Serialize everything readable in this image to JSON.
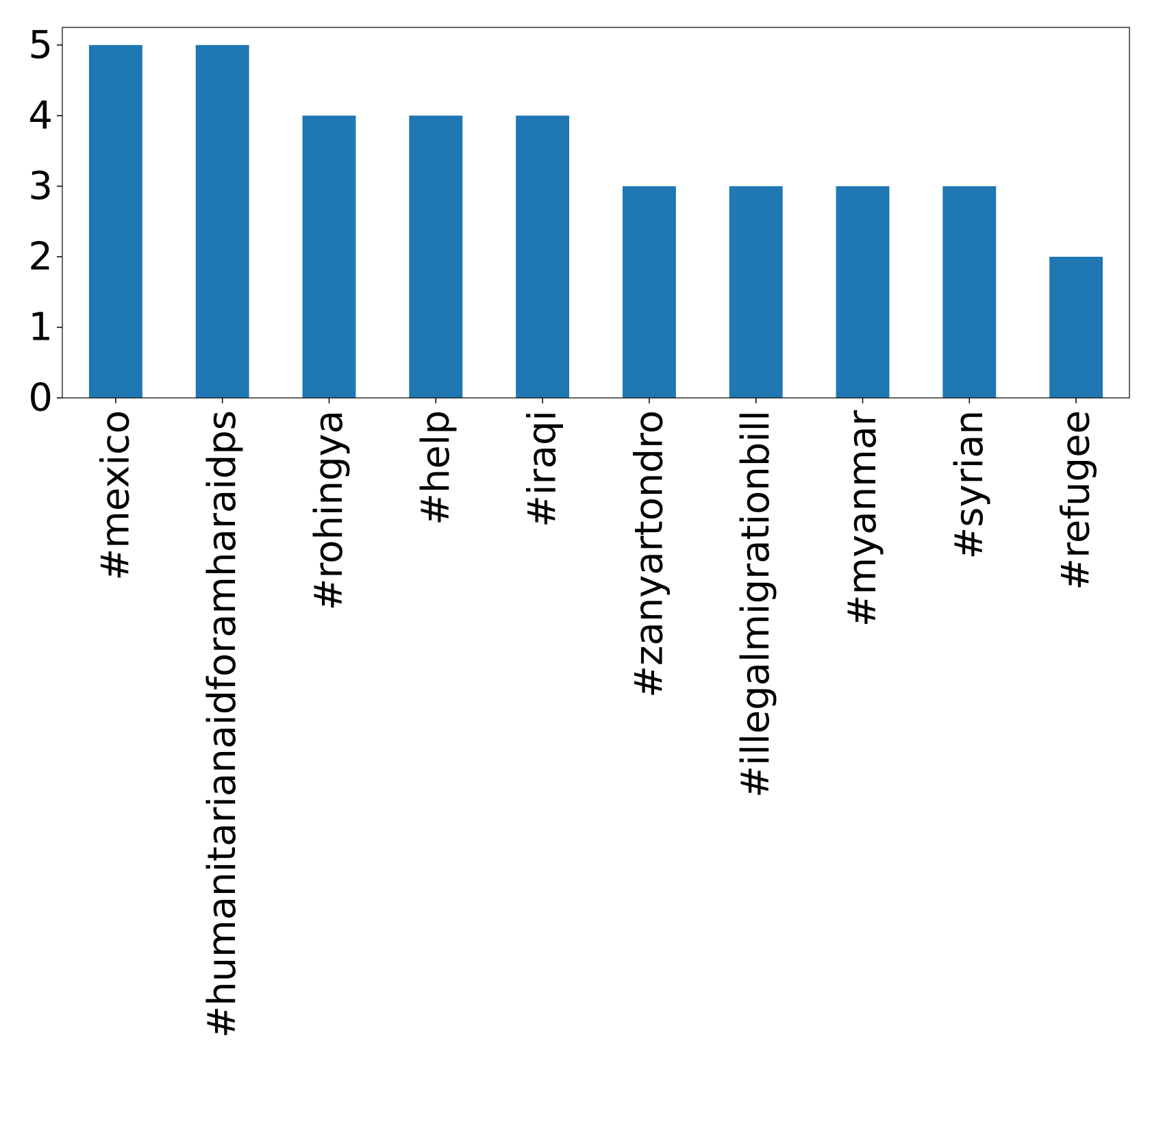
{
  "chart_data": {
    "type": "bar",
    "title": "",
    "xlabel": "",
    "ylabel": "",
    "categories": [
      "#mexico",
      "#humanitarianaidforamharaidps",
      "#rohingya",
      "#help",
      "#iraqi",
      "#zanyartondro",
      "#illegalmigrationbill",
      "#myanmar",
      "#syrian",
      "#refugee"
    ],
    "values": [
      5,
      5,
      4,
      4,
      4,
      3,
      3,
      3,
      3,
      2
    ],
    "ylim": [
      0,
      5.25
    ],
    "yticks": [
      0,
      1,
      2,
      3,
      4,
      5
    ],
    "grid": false,
    "legend": "none",
    "bar_color": "#1f77b4",
    "axis_color": "#000000"
  }
}
